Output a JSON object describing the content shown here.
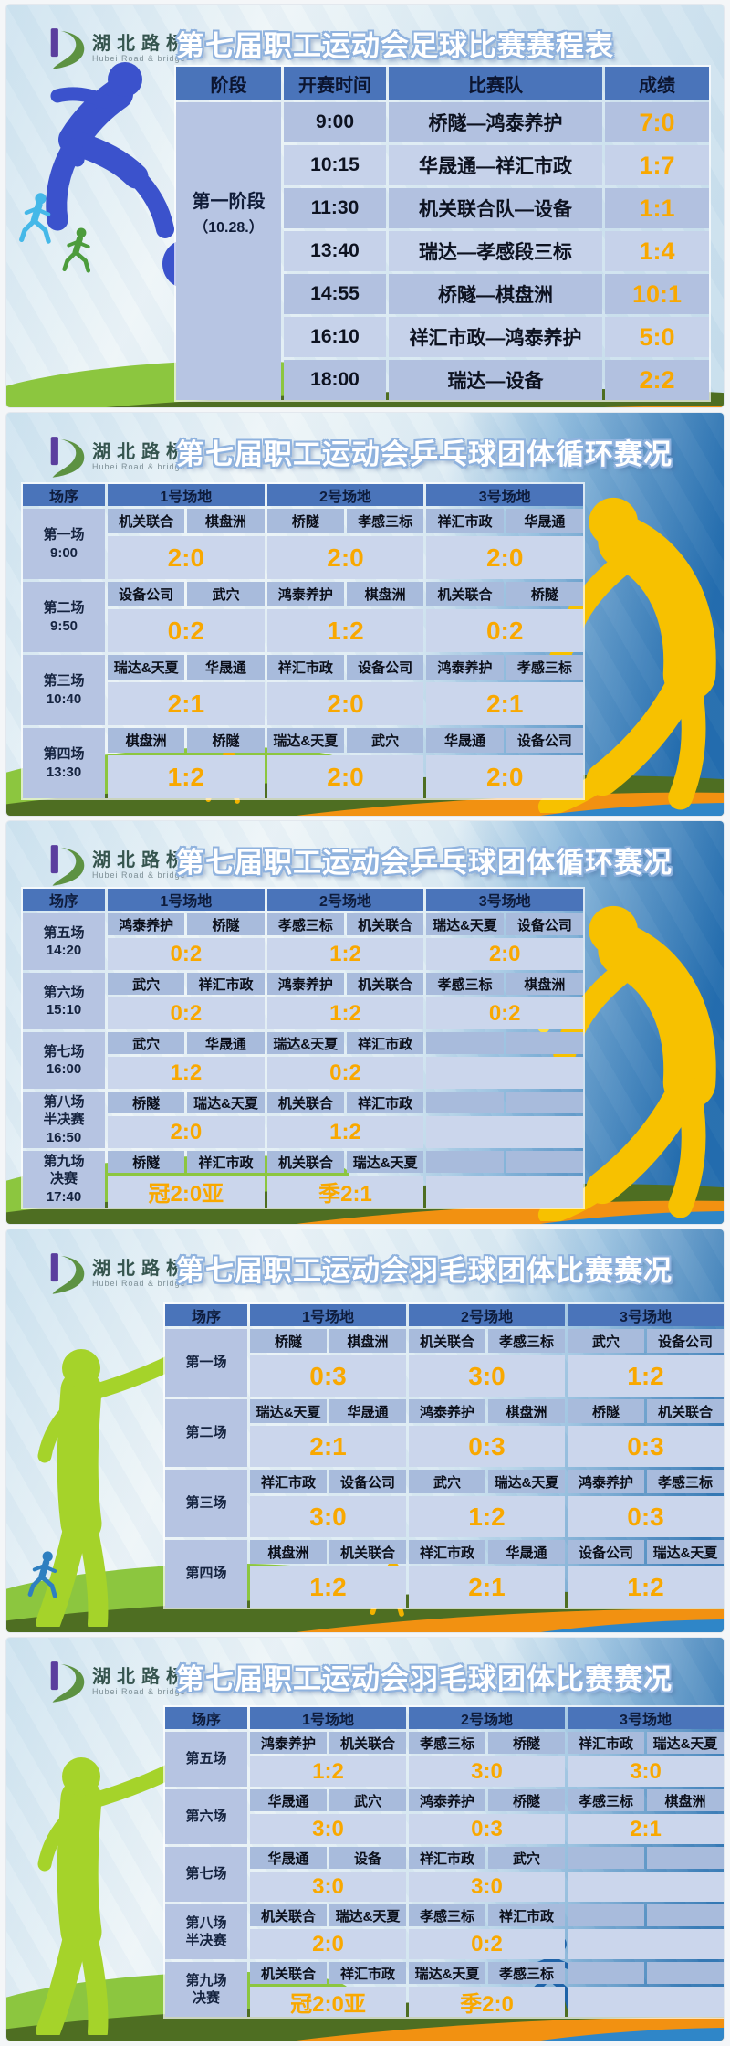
{
  "logo": {
    "name_cn": "湖北路桥",
    "name_en": "Hubei Road & bridge"
  },
  "colors": {
    "accent_orange": "#F9A800",
    "header_blue": "#4A74BA",
    "team_cell": "#A8BBDC",
    "score_cell": "#CBD6EC",
    "order_cell": "#B6C4E2"
  },
  "panels": [
    {
      "title": "第七届职工运动会足球比赛赛程表",
      "table": {
        "headers": [
          "阶段",
          "开赛时间",
          "比赛队",
          "成绩"
        ],
        "stage_lines": [
          "第一阶段",
          "（10.28.）"
        ],
        "rows": [
          {
            "time": "9:00",
            "teams": "桥隧—鸿泰养护",
            "score": "7:0"
          },
          {
            "time": "10:15",
            "teams": "华晟通—祥汇市政",
            "score": "1:7"
          },
          {
            "time": "11:30",
            "teams": "机关联合队—设备",
            "score": "1:1"
          },
          {
            "time": "13:40",
            "teams": "瑞达—孝感段三标",
            "score": "1:4"
          },
          {
            "time": "14:55",
            "teams": "桥隧—棋盘洲",
            "score": "10:1"
          },
          {
            "time": "16:10",
            "teams": "祥汇市政—鸿泰养护",
            "score": "5:0"
          },
          {
            "time": "18:00",
            "teams": "瑞达—设备",
            "score": "2:2"
          }
        ]
      }
    },
    {
      "title": "第七届职工运动会乒乓球团体循环赛况",
      "table": {
        "headers": [
          "场序",
          "1号场地",
          "2号场地",
          "3号场地"
        ],
        "rows": [
          {
            "label_lines": [
              "第一场",
              "9:00"
            ],
            "courts": [
              [
                "机关联合",
                "棋盘洲",
                "2:0"
              ],
              [
                "桥隧",
                "孝感三标",
                "2:0"
              ],
              [
                "祥汇市政",
                "华晟通",
                "2:0"
              ]
            ]
          },
          {
            "label_lines": [
              "第二场",
              "9:50"
            ],
            "courts": [
              [
                "设备公司",
                "武穴",
                "0:2"
              ],
              [
                "鸿泰养护",
                "棋盘洲",
                "1:2"
              ],
              [
                "机关联合",
                "桥隧",
                "0:2"
              ]
            ]
          },
          {
            "label_lines": [
              "第三场",
              "10:40"
            ],
            "courts": [
              [
                "瑞达&天夏",
                "华晟通",
                "2:1"
              ],
              [
                "祥汇市政",
                "设备公司",
                "2:0"
              ],
              [
                "鸿泰养护",
                "孝感三标",
                "2:1"
              ]
            ]
          },
          {
            "label_lines": [
              "第四场",
              "13:30"
            ],
            "courts": [
              [
                "棋盘洲",
                "桥隧",
                "1:2"
              ],
              [
                "瑞达&天夏",
                "武穴",
                "2:0"
              ],
              [
                "华晟通",
                "设备公司",
                "2:0"
              ]
            ]
          }
        ]
      }
    },
    {
      "title": "第七届职工运动会乒乓球团体循环赛况",
      "table": {
        "headers": [
          "场序",
          "1号场地",
          "2号场地",
          "3号场地"
        ],
        "rows": [
          {
            "label_lines": [
              "第五场",
              "14:20"
            ],
            "courts": [
              [
                "鸿泰养护",
                "桥隧",
                "0:2"
              ],
              [
                "孝感三标",
                "机关联合",
                "1:2"
              ],
              [
                "瑞达&天夏",
                "设备公司",
                "2:0"
              ]
            ]
          },
          {
            "label_lines": [
              "第六场",
              "15:10"
            ],
            "courts": [
              [
                "武穴",
                "祥汇市政",
                "0:2"
              ],
              [
                "鸿泰养护",
                "机关联合",
                "1:2"
              ],
              [
                "孝感三标",
                "棋盘洲",
                "0:2"
              ]
            ]
          },
          {
            "label_lines": [
              "第七场",
              "16:00"
            ],
            "courts": [
              [
                "武穴",
                "华晟通",
                "1:2"
              ],
              [
                "瑞达&天夏",
                "祥汇市政",
                "0:2"
              ],
              [
                "",
                "",
                ""
              ]
            ]
          },
          {
            "label_lines": [
              "第八场",
              "半决赛",
              "16:50"
            ],
            "courts": [
              [
                "桥隧",
                "瑞达&天夏",
                "2:0"
              ],
              [
                "机关联合",
                "祥汇市政",
                "1:2"
              ],
              [
                "",
                "",
                ""
              ]
            ]
          },
          {
            "label_lines": [
              "第九场",
              "决赛",
              "17:40"
            ],
            "courts": [
              [
                "桥隧",
                "祥汇市政",
                "冠2:0亚"
              ],
              [
                "机关联合",
                "瑞达&天夏",
                "季2:1"
              ],
              [
                "",
                "",
                ""
              ]
            ]
          }
        ]
      }
    },
    {
      "title": "第七届职工运动会羽毛球团体比赛赛况",
      "table": {
        "headers": [
          "场序",
          "1号场地",
          "2号场地",
          "3号场地"
        ],
        "rows": [
          {
            "label_lines": [
              "第一场"
            ],
            "courts": [
              [
                "桥隧",
                "棋盘洲",
                "0:3"
              ],
              [
                "机关联合",
                "孝感三标",
                "3:0"
              ],
              [
                "武穴",
                "设备公司",
                "1:2"
              ]
            ]
          },
          {
            "label_lines": [
              "第二场"
            ],
            "courts": [
              [
                "瑞达&天夏",
                "华晟通",
                "2:1"
              ],
              [
                "鸿泰养护",
                "棋盘洲",
                "0:3"
              ],
              [
                "桥隧",
                "机关联合",
                "0:3"
              ]
            ]
          },
          {
            "label_lines": [
              "第三场"
            ],
            "courts": [
              [
                "祥汇市政",
                "设备公司",
                "3:0"
              ],
              [
                "武穴",
                "瑞达&天夏",
                "1:2"
              ],
              [
                "鸿泰养护",
                "孝感三标",
                "0:3"
              ]
            ]
          },
          {
            "label_lines": [
              "第四场"
            ],
            "courts": [
              [
                "棋盘洲",
                "机关联合",
                "1:2"
              ],
              [
                "祥汇市政",
                "华晟通",
                "2:1"
              ],
              [
                "设备公司",
                "瑞达&天夏",
                "1:2"
              ]
            ]
          }
        ]
      }
    },
    {
      "title": "第七届职工运动会羽毛球团体比赛赛况",
      "table": {
        "headers": [
          "场序",
          "1号场地",
          "2号场地",
          "3号场地"
        ],
        "rows": [
          {
            "label_lines": [
              "第五场"
            ],
            "courts": [
              [
                "鸿泰养护",
                "机关联合",
                "1:2"
              ],
              [
                "孝感三标",
                "桥隧",
                "3:0"
              ],
              [
                "祥汇市政",
                "瑞达&天夏",
                "3:0"
              ]
            ]
          },
          {
            "label_lines": [
              "第六场"
            ],
            "courts": [
              [
                "华晟通",
                "武穴",
                "3:0"
              ],
              [
                "鸿泰养护",
                "桥隧",
                "0:3"
              ],
              [
                "孝感三标",
                "棋盘洲",
                "2:1"
              ]
            ]
          },
          {
            "label_lines": [
              "第七场"
            ],
            "courts": [
              [
                "华晟通",
                "设备",
                "3:0"
              ],
              [
                "祥汇市政",
                "武穴",
                "3:0"
              ],
              [
                "",
                "",
                ""
              ]
            ]
          },
          {
            "label_lines": [
              "第八场",
              "半决赛"
            ],
            "courts": [
              [
                "机关联合",
                "瑞达&天夏",
                "2:0"
              ],
              [
                "孝感三标",
                "祥汇市政",
                "0:2"
              ],
              [
                "",
                "",
                ""
              ]
            ]
          },
          {
            "label_lines": [
              "第九场",
              "决赛"
            ],
            "courts": [
              [
                "机关联合",
                "祥汇市政",
                "冠2:0亚"
              ],
              [
                "瑞达&天夏",
                "孝感三标",
                "季2:0"
              ],
              [
                "",
                "",
                ""
              ]
            ]
          }
        ]
      }
    }
  ]
}
